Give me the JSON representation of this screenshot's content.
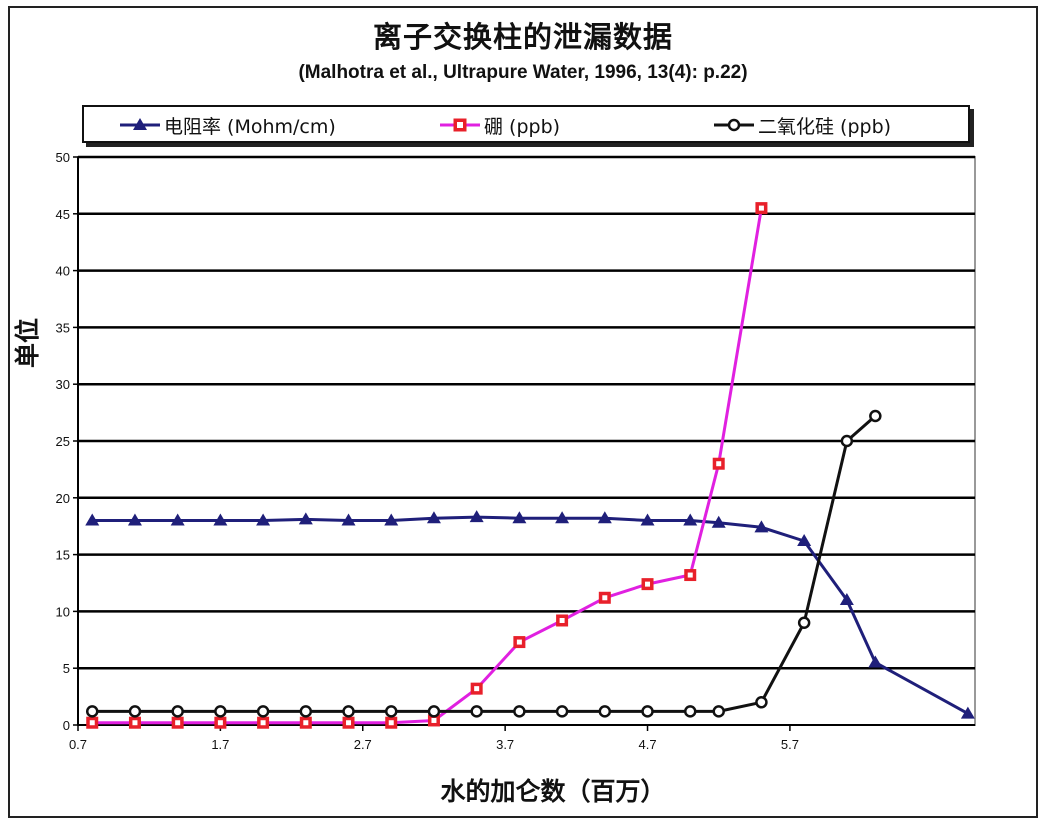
{
  "chart_data": {
    "type": "line",
    "title": "离子交换柱的泄漏数据",
    "subtitle": "(Malhotra et al., Ultrapure Water, 1996, 13(4): p.22)",
    "xlabel": "水的加仑数（百万）",
    "ylabel": "单位",
    "xlim": [
      0.7,
      7.0
    ],
    "ylim": [
      0,
      50
    ],
    "x_ticks": [
      0.7,
      1.7,
      2.7,
      3.7,
      4.7,
      5.7
    ],
    "x_tick_labels": [
      "0.7",
      "1.7",
      "2.7",
      "3.7",
      "4.7",
      "5.7"
    ],
    "y_ticks": [
      0,
      5,
      10,
      15,
      20,
      25,
      30,
      35,
      40,
      45,
      50
    ],
    "y_tick_labels": [
      "0",
      "5",
      "10",
      "15",
      "20",
      "25",
      "30",
      "35",
      "40",
      "45",
      "50"
    ],
    "grid": "horizontal",
    "legend_position": "top",
    "series": [
      {
        "name": "电阻率 (Mohm/cm)",
        "color": "#1f1f7a",
        "marker": "triangle",
        "x": [
          0.8,
          1.1,
          1.4,
          1.7,
          2.0,
          2.3,
          2.6,
          2.9,
          3.2,
          3.5,
          3.8,
          4.1,
          4.4,
          4.7,
          5.0,
          5.2,
          5.5,
          5.8,
          6.1,
          6.3,
          6.95
        ],
        "y": [
          18,
          18,
          18,
          18,
          18,
          18.1,
          18,
          18,
          18.2,
          18.3,
          18.2,
          18.2,
          18.2,
          18,
          18,
          17.8,
          17.4,
          16.2,
          11,
          5.5,
          1
        ]
      },
      {
        "name": "硼 (ppb)",
        "color": "#e020e0",
        "marker": "square",
        "x": [
          0.8,
          1.1,
          1.4,
          1.7,
          2.0,
          2.3,
          2.6,
          2.9,
          3.2,
          3.5,
          3.8,
          4.1,
          4.4,
          4.7,
          5.0,
          5.2,
          5.5
        ],
        "y": [
          0.2,
          0.2,
          0.2,
          0.2,
          0.2,
          0.2,
          0.2,
          0.2,
          0.4,
          3.2,
          7.3,
          9.2,
          11.2,
          12.4,
          13.2,
          23,
          45.5
        ]
      },
      {
        "name": "二氧化硅 (ppb)",
        "color": "#111111",
        "marker": "circle",
        "x": [
          0.8,
          1.1,
          1.4,
          1.7,
          2.0,
          2.3,
          2.6,
          2.9,
          3.2,
          3.5,
          3.8,
          4.1,
          4.4,
          4.7,
          5.0,
          5.2,
          5.5,
          5.8,
          6.1,
          6.3
        ],
        "y": [
          1.2,
          1.2,
          1.2,
          1.2,
          1.2,
          1.2,
          1.2,
          1.2,
          1.2,
          1.2,
          1.2,
          1.2,
          1.2,
          1.2,
          1.2,
          1.2,
          2,
          9,
          25,
          27.2
        ]
      }
    ]
  }
}
